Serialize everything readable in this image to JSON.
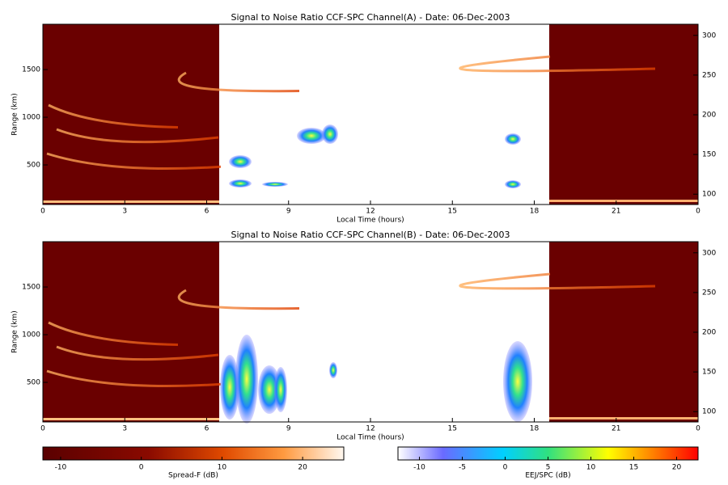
{
  "chart_data": [
    {
      "type": "heatmap",
      "title": "Signal to Noise Ratio CCF-SPC Channel(A) - Date: 06-Dec-2003",
      "x_label": "Local Time (hours)",
      "y_label": "Range (km)",
      "xlim": [
        0,
        24
      ],
      "xticks": [
        0,
        3,
        6,
        9,
        12,
        15,
        18,
        21,
        {
          "value": 24,
          "label": "0"
        }
      ],
      "ylim": [
        85,
        1975
      ],
      "yticks": [
        500,
        1000,
        1500
      ],
      "y2lim": [
        87,
        314
      ],
      "y2ticks": [
        100,
        150,
        200,
        250,
        300
      ]
    },
    {
      "type": "heatmap",
      "title": "Signal to Noise Ratio CCF-SPC Channel(B) - Date: 06-Dec-2003",
      "x_label": "Local Time (hours)",
      "y_label": "Range (km)",
      "xlim": [
        0,
        24
      ],
      "xticks": [
        0,
        3,
        6,
        9,
        12,
        15,
        18,
        21,
        {
          "value": 24,
          "label": "0"
        }
      ],
      "ylim": [
        85,
        1975
      ],
      "yticks": [
        500,
        1000,
        1500
      ],
      "y2lim": [
        87,
        314
      ],
      "y2ticks": [
        100,
        150,
        200,
        250,
        300
      ]
    }
  ],
  "colorbars": [
    {
      "label": "Spread-F (dB)",
      "lim": [
        -12.2,
        25.1
      ],
      "ticks": [
        -10,
        0,
        10,
        20
      ]
    },
    {
      "label": "EEJ/SPC (dB)",
      "lim": [
        -12.5,
        22.5
      ],
      "ticks": [
        -10,
        -5,
        0,
        5,
        10,
        15,
        20
      ]
    }
  ]
}
